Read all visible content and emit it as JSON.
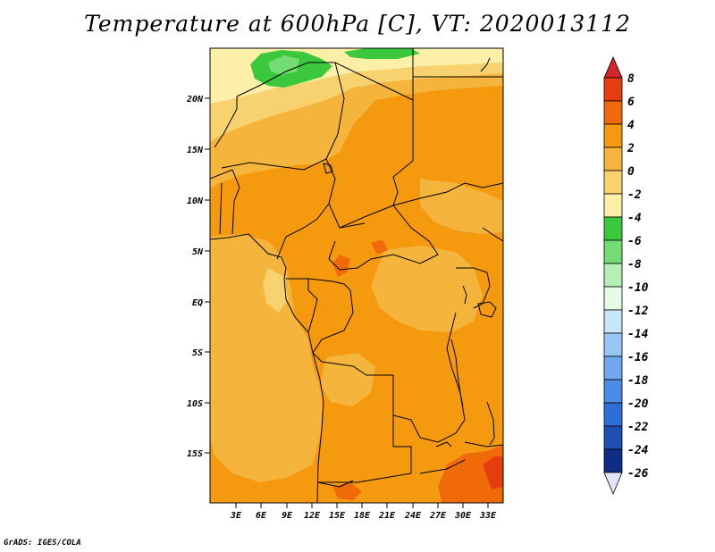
{
  "title": "Temperature at 600hPa [C], VT: 2020013112",
  "footer": "GrADS: IGES/COLA",
  "map": {
    "lat_labels": [
      "20N",
      "15N",
      "10N",
      "5N",
      "EQ",
      "5S",
      "10S",
      "15S"
    ],
    "lon_labels": [
      "3E",
      "6E",
      "9E",
      "12E",
      "15E",
      "18E",
      "21E",
      "24E",
      "27E",
      "30E",
      "33E"
    ]
  },
  "colorbar": {
    "labels": [
      "8",
      "6",
      "4",
      "2",
      "0",
      "-2",
      "-4",
      "-6",
      "-8",
      "-10",
      "-12",
      "-14",
      "-16",
      "-18",
      "-20",
      "-22",
      "-24",
      "-26"
    ],
    "colors": {
      "top_triangle": "#d2262a",
      "c6_8": "#e63c11",
      "c4_6": "#f06a0a",
      "c2_4": "#f59a0f",
      "c0_2": "#f5b43c",
      "cm2_0": "#f8d26e",
      "cm4_m2": "#fcf0a8",
      "cm6_m4": "#3cc83c",
      "cm8_m6": "#73dd73",
      "cm10_m8": "#b4f0b4",
      "cm12_m10": "#e6fae6",
      "cm14_m12": "#c8e6fa",
      "cm16_m14": "#96c8f5",
      "cm18_m16": "#6ea8ee",
      "cm20_m18": "#4b8ce6",
      "cm22_m20": "#2f6ed7",
      "cm24_m22": "#1e50b4",
      "cm26_m24": "#0f2d87",
      "bottom_triangle": "#e6e6fa"
    }
  }
}
